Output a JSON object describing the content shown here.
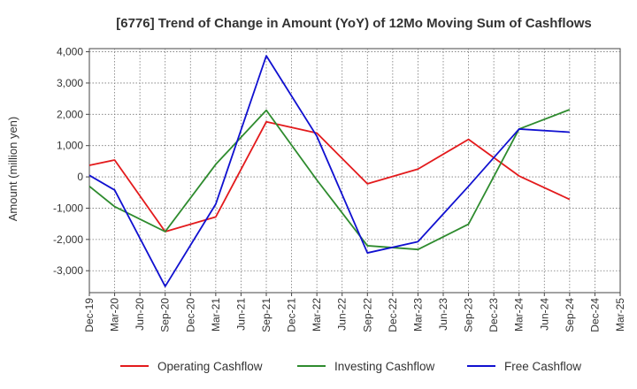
{
  "chart_data": {
    "type": "line",
    "title": "[6776]  Trend of Change in Amount (YoY) of 12Mo Moving Sum of Cashflows",
    "ylabel": "Amount (million yen)",
    "xlabel": "",
    "ylim": [
      -3700,
      4100
    ],
    "yticks": [
      4000,
      3000,
      2000,
      1000,
      0,
      -1000,
      -2000,
      -3000
    ],
    "ytick_labels": [
      "4,000",
      "3,000",
      "2,000",
      "1,000",
      "0",
      "-1,000",
      "-2,000",
      "-3,000"
    ],
    "categories": [
      "Dec-19",
      "Mar-20",
      "Jun-20",
      "Sep-20",
      "Dec-20",
      "Mar-21",
      "Jun-21",
      "Sep-21",
      "Dec-21",
      "Mar-22",
      "Jun-22",
      "Sep-22",
      "Dec-22",
      "Mar-23",
      "Jun-23",
      "Sep-23",
      "Dec-23",
      "Mar-24",
      "Jun-24",
      "Sep-24",
      "Dec-24",
      "Mar-25"
    ],
    "series": [
      {
        "name": "Operating Cashflow",
        "color": "#e31a1c",
        "values": [
          370,
          540,
          null,
          -1750,
          null,
          -1280,
          null,
          1760,
          null,
          1400,
          null,
          -220,
          null,
          250,
          null,
          1200,
          null,
          30,
          null,
          -720,
          null,
          null
        ]
      },
      {
        "name": "Investing Cashflow",
        "color": "#2e8b2e",
        "values": [
          -300,
          -950,
          null,
          -1750,
          null,
          400,
          null,
          2130,
          null,
          -100,
          null,
          -2200,
          null,
          -2320,
          null,
          -1510,
          null,
          1530,
          null,
          2150,
          null,
          null
        ]
      },
      {
        "name": "Free Cashflow",
        "color": "#1010d0",
        "values": [
          50,
          -420,
          null,
          -3500,
          null,
          -870,
          null,
          3870,
          null,
          1300,
          null,
          -2430,
          null,
          -2070,
          null,
          -300,
          null,
          1530,
          null,
          1430,
          null,
          null
        ]
      }
    ],
    "grid": true,
    "legend": "bottom"
  }
}
